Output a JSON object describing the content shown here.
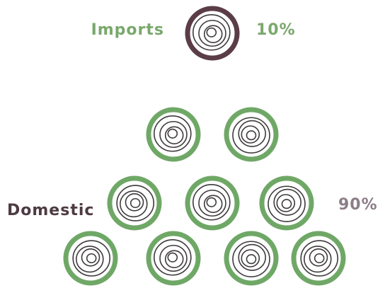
{
  "chart_data": {
    "type": "pictogram",
    "categories": [
      "Imports",
      "Domestic"
    ],
    "values": [
      10,
      90
    ],
    "value_labels": [
      "10%",
      "90%"
    ],
    "colors": [
      "#5b3d47",
      "#6fa866"
    ]
  }
}
